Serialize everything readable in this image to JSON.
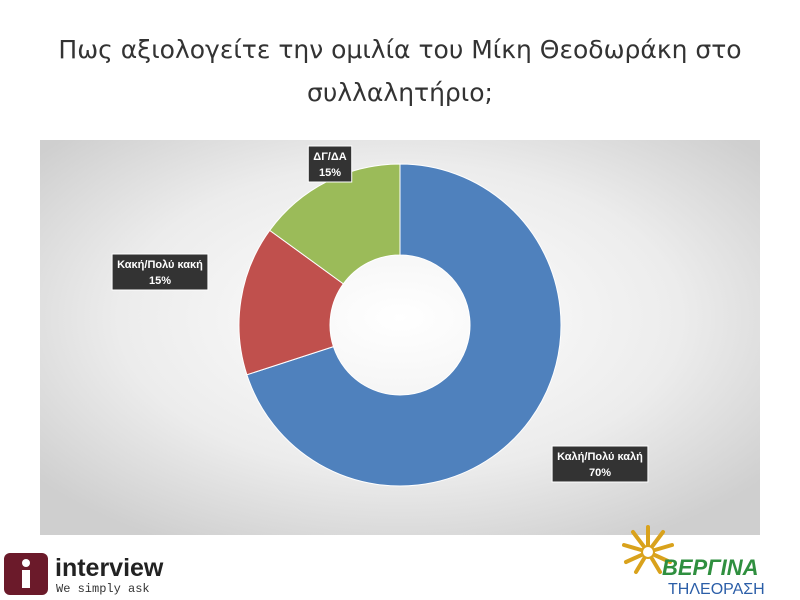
{
  "chart_data": {
    "type": "donut",
    "title_lines": [
      "Πως αξιολογείτε την ομιλία του Μίκη Θεοδωράκη στο",
      "συλλαλητήριο;"
    ],
    "categories": [
      "Καλή/Πολύ καλή",
      "Κακή/Πολύ κακή",
      "ΔΓ/ΔΑ"
    ],
    "values": [
      70,
      15,
      15
    ],
    "value_labels": [
      "70%",
      "15%",
      "15%"
    ],
    "colors": [
      "#4f81bd",
      "#c0504d",
      "#9bbb59"
    ]
  },
  "footer": {
    "left_logo": {
      "name": "interview",
      "tagline": "We simply ask"
    },
    "right_logo": {
      "name": "ΒΕΡΓΙΝΑ",
      "subtitle": "ΤΗΛΕΟΡΑΣΗ"
    }
  }
}
